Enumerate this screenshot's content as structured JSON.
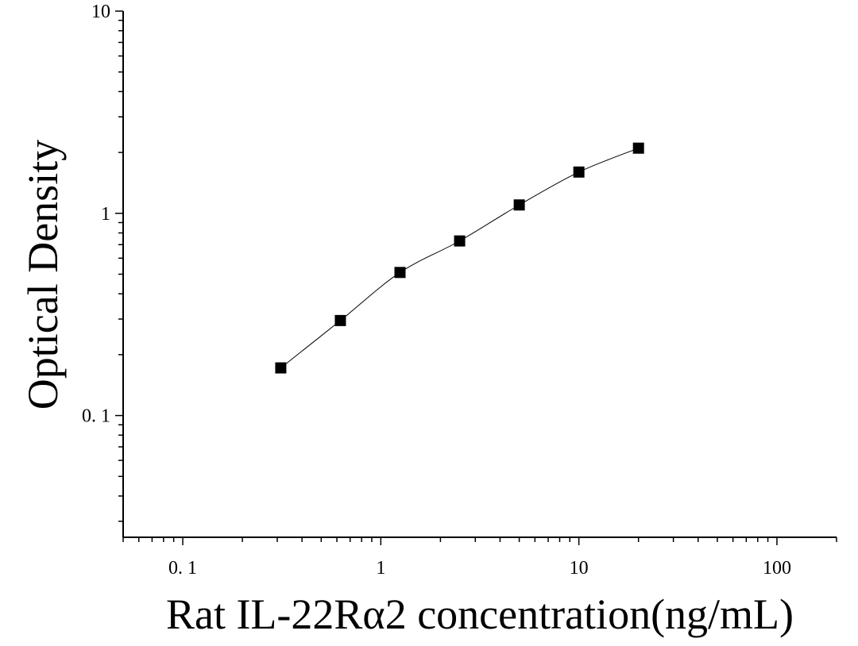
{
  "chart_data": {
    "type": "scatter",
    "title": "",
    "xlabel": "Rat IL-22Rα2 concentration(ng/mL)",
    "ylabel": "Optical Density",
    "x_scale": "log",
    "y_scale": "log",
    "xlim": [
      0.05,
      200
    ],
    "ylim": [
      0.025,
      10
    ],
    "x_tick_values": [
      0.1,
      1,
      10,
      100
    ],
    "x_tick_labels": [
      "0. 1",
      "1",
      "10",
      "100"
    ],
    "y_tick_values": [
      0.1,
      1,
      10
    ],
    "y_tick_labels": [
      "0. 1",
      "1",
      "10"
    ],
    "grid": false,
    "legend": "none",
    "series": [
      {
        "marker": "square",
        "color": "#000000",
        "points": [
          {
            "x": 0.3125,
            "y": 0.172
          },
          {
            "x": 0.625,
            "y": 0.295
          },
          {
            "x": 1.25,
            "y": 0.51
          },
          {
            "x": 2.5,
            "y": 0.73
          },
          {
            "x": 5,
            "y": 1.1
          },
          {
            "x": 10,
            "y": 1.6
          },
          {
            "x": 20,
            "y": 2.1
          }
        ]
      }
    ],
    "fit_curve": {
      "type": "smooth",
      "color": "#000000"
    }
  }
}
